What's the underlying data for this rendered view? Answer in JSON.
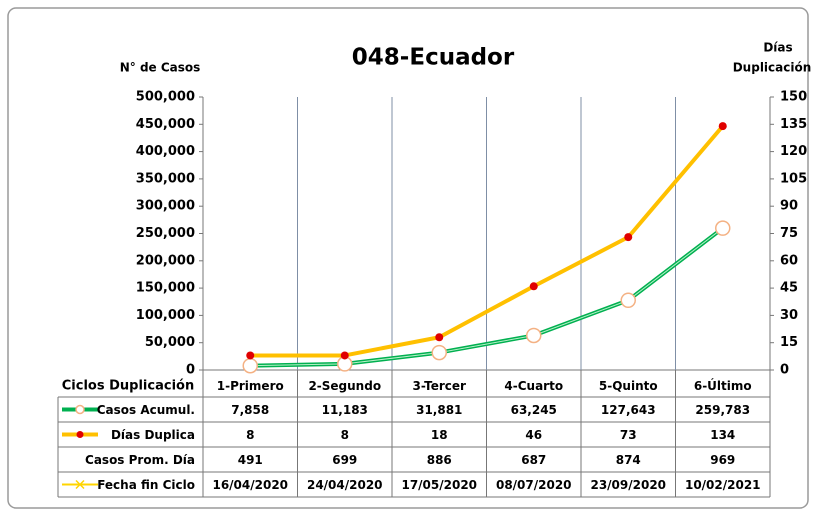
{
  "chart_data": {
    "type": "line",
    "title": "048-Ecuador",
    "y_label": "N° de Casos",
    "y2_label_lines": [
      "Días",
      "Duplicación"
    ],
    "table_header": "Ciclos Duplicación",
    "categories": [
      "1-Primero",
      "2-Segundo",
      "3-Tercer",
      "4-Cuarto",
      "5-Quinto",
      "6-Último"
    ],
    "ylim": [
      0,
      500000
    ],
    "yticks": [
      0,
      {
        "value": 50000,
        "label": "50,000"
      },
      {
        "value": 100000,
        "label": "100,000"
      },
      {
        "value": 150000,
        "label": "150,000"
      },
      {
        "value": 200000,
        "label": "200,000"
      },
      {
        "value": 250000,
        "label": "250,000"
      },
      {
        "value": 300000,
        "label": "300,000"
      },
      {
        "value": 350000,
        "label": "350,000"
      },
      {
        "value": 400000,
        "label": "400,000"
      },
      {
        "value": 450000,
        "label": "450,000"
      },
      {
        "value": 500000,
        "label": "500,000"
      }
    ],
    "y2lim": [
      0,
      150
    ],
    "y2ticks": [
      0,
      15,
      30,
      45,
      60,
      75,
      90,
      105,
      120,
      135,
      150
    ],
    "series": [
      {
        "name": "Casos Acumul.",
        "color": "#00b050",
        "marker": "circle",
        "axis": "y",
        "values": [
          7858,
          11183,
          31881,
          63245,
          127643,
          259783
        ],
        "value_labels": [
          "7,858",
          "11,183",
          "31,881",
          "63,245",
          "127,643",
          "259,783"
        ]
      },
      {
        "name": "Días Duplica",
        "color": "#ffc000",
        "marker": "dot",
        "axis": "y2",
        "values": [
          8,
          8,
          18,
          46,
          73,
          134
        ]
      },
      {
        "name": "Casos Prom. Día",
        "values": [
          491,
          699,
          886,
          687,
          874,
          969
        ]
      },
      {
        "name": "Fecha fin Ciclo",
        "color": "#ffd400",
        "marker": "x",
        "values": [
          "16/04/2020",
          "24/04/2020",
          "17/05/2020",
          "08/07/2020",
          "23/09/2020",
          "10/02/2021"
        ]
      }
    ]
  }
}
